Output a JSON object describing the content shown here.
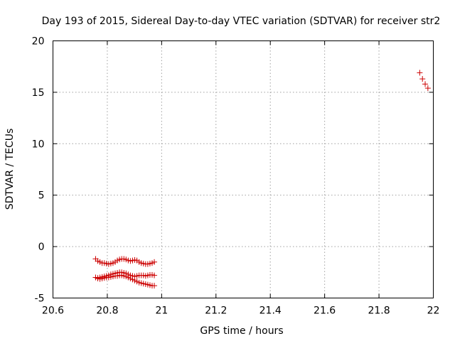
{
  "chart_data": {
    "type": "scatter",
    "title": "Day 193 of 2015, Sidereal Day-to-day VTEC variation (SDTVAR) for receiver str2",
    "xlabel": "GPS time / hours",
    "ylabel": "SDTVAR / TECUs",
    "xlim": [
      20.6,
      22.0
    ],
    "ylim": [
      -5,
      20
    ],
    "x_ticks": [
      20.6,
      20.8,
      21.0,
      21.2,
      21.4,
      21.6,
      21.8,
      22.0
    ],
    "x_tick_labels": [
      "20.6",
      "20.8",
      "21",
      "21.2",
      "21.4",
      "21.6",
      "21.8",
      "22"
    ],
    "y_ticks": [
      -5,
      0,
      5,
      10,
      15,
      20
    ],
    "y_tick_labels": [
      "-5",
      "0",
      "5",
      "10",
      "15",
      "20"
    ],
    "grid": true,
    "marker": "+",
    "marker_color": "#cc0000",
    "series": [
      {
        "x": [
          20.757,
          20.765,
          20.773,
          20.781,
          20.789,
          20.797,
          20.805,
          20.813,
          20.821,
          20.829,
          20.837,
          20.845,
          20.853,
          20.861,
          20.869,
          20.877,
          20.885,
          20.893,
          20.901,
          20.909,
          20.917,
          20.925,
          20.933,
          20.941,
          20.949,
          20.957,
          20.965,
          20.973
        ],
        "y": [
          -1.2,
          -1.4,
          -1.5,
          -1.6,
          -1.6,
          -1.65,
          -1.7,
          -1.65,
          -1.6,
          -1.5,
          -1.35,
          -1.25,
          -1.2,
          -1.2,
          -1.25,
          -1.35,
          -1.4,
          -1.35,
          -1.3,
          -1.35,
          -1.5,
          -1.6,
          -1.65,
          -1.7,
          -1.7,
          -1.65,
          -1.6,
          -1.5
        ]
      },
      {
        "x": [
          20.757,
          20.765,
          20.773,
          20.781,
          20.789,
          20.797,
          20.805,
          20.813,
          20.821,
          20.829,
          20.837,
          20.845,
          20.853,
          20.861,
          20.869,
          20.877,
          20.885,
          20.893,
          20.901,
          20.909,
          20.917,
          20.925,
          20.933,
          20.941,
          20.949,
          20.957,
          20.965,
          20.973
        ],
        "y": [
          -3.0,
          -3.05,
          -3.0,
          -2.95,
          -2.9,
          -2.85,
          -2.8,
          -2.7,
          -2.65,
          -2.6,
          -2.55,
          -2.5,
          -2.5,
          -2.55,
          -2.6,
          -2.7,
          -2.8,
          -2.85,
          -2.9,
          -2.85,
          -2.8,
          -2.8,
          -2.8,
          -2.85,
          -2.8,
          -2.75,
          -2.75,
          -2.8
        ]
      },
      {
        "x": [
          20.757,
          20.765,
          20.773,
          20.781,
          20.789,
          20.797,
          20.805,
          20.813,
          20.821,
          20.829,
          20.837,
          20.845,
          20.853,
          20.861,
          20.869,
          20.877,
          20.885,
          20.893,
          20.901,
          20.909,
          20.917,
          20.925,
          20.933,
          20.941,
          20.949,
          20.957,
          20.965,
          20.973
        ],
        "y": [
          -3.0,
          -3.1,
          -3.15,
          -3.1,
          -3.05,
          -3.0,
          -3.0,
          -2.95,
          -2.9,
          -2.85,
          -2.85,
          -2.8,
          -2.8,
          -2.85,
          -2.9,
          -3.0,
          -3.1,
          -3.2,
          -3.3,
          -3.4,
          -3.5,
          -3.55,
          -3.6,
          -3.65,
          -3.7,
          -3.75,
          -3.8,
          -3.8
        ]
      },
      {
        "x": [
          21.95,
          21.96,
          21.97,
          21.98
        ],
        "y": [
          16.9,
          16.3,
          15.8,
          15.4
        ]
      }
    ]
  }
}
